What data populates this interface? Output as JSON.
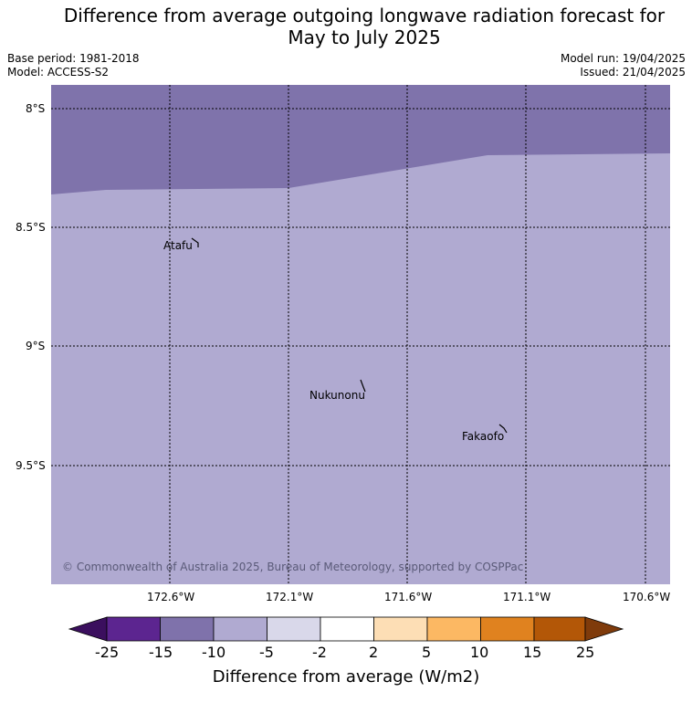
{
  "title": {
    "line1": "Difference from average outgoing longwave radiation forecast for",
    "line2": "May to July 2025"
  },
  "meta": {
    "base_period": "Base period: 1981-2018",
    "model": "Model: ACCESS-S2",
    "model_run": "Model run: 19/04/2025",
    "issued": "Issued: 21/04/2025"
  },
  "map": {
    "lat_ticks": [
      "8°S",
      "8.5°S",
      "9°S",
      "9.5°S"
    ],
    "lon_ticks": [
      "172.6°W",
      "172.1°W",
      "171.6°W",
      "171.1°W",
      "170.6°W"
    ],
    "places": [
      "Atafu",
      "Nukunonu",
      "Fakaofo"
    ],
    "copyright": "© Commonwealth of Australia 2025, Bureau of Meteorology, supported by COSPPac",
    "fill_colors": {
      "band_dark": "#7f73ab",
      "band_light": "#b0aad1"
    }
  },
  "colorbar": {
    "labels": [
      "-25",
      "-15",
      "-10",
      "-5",
      "-2",
      "2",
      "5",
      "10",
      "15",
      "25"
    ],
    "colors": [
      "#3b0f5e",
      "#5c2590",
      "#7f72ab",
      "#b0aad1",
      "#d9d8ea",
      "#ffffff",
      "#fddeb5",
      "#fcb863",
      "#e0821f",
      "#b35707",
      "#7f3b0b"
    ],
    "title": "Difference from average (W/m2)"
  }
}
